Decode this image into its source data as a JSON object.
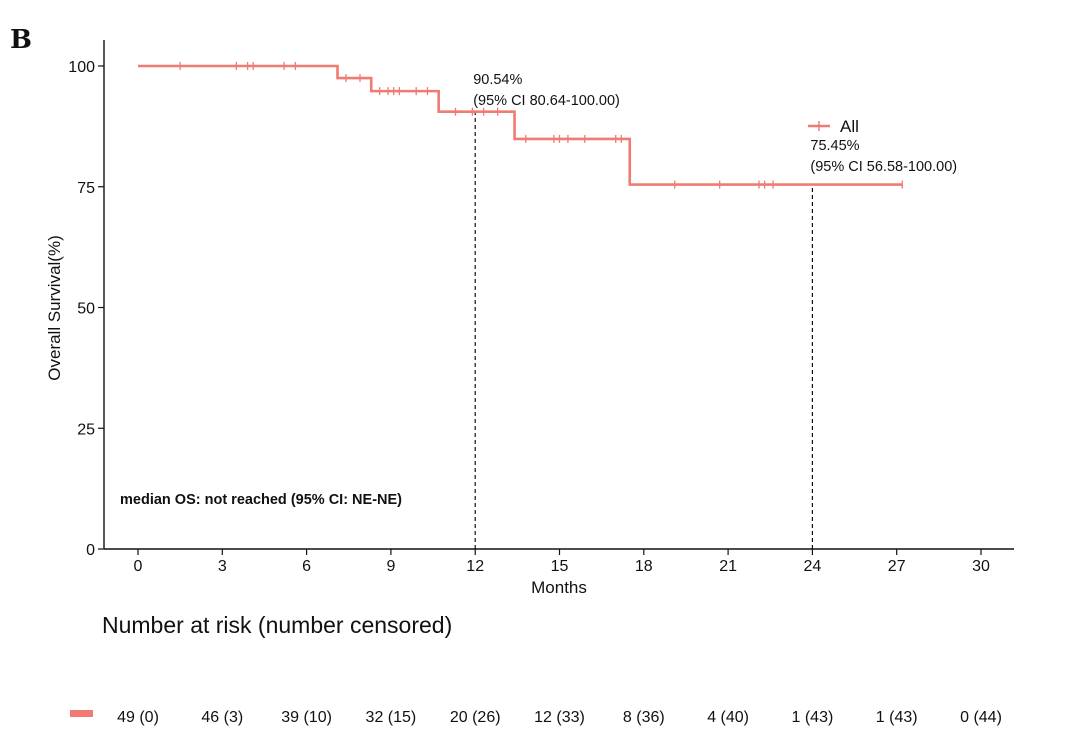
{
  "panel_letter": "B",
  "chart_data": {
    "type": "line",
    "subtype": "kaplan-meier",
    "title": "",
    "xlabel": "Months",
    "ylabel": "Overall Survival(%)",
    "xlim": [
      0,
      30
    ],
    "ylim": [
      0,
      100
    ],
    "xticks": [
      0,
      3,
      6,
      9,
      12,
      15,
      18,
      21,
      24,
      27,
      30
    ],
    "yticks": [
      0,
      25,
      50,
      75,
      100
    ],
    "grid": false,
    "legend": {
      "position": "top-right",
      "entries": [
        "All"
      ]
    },
    "colors": {
      "curve": "#F07B72"
    },
    "series": [
      {
        "name": "All",
        "steps": [
          {
            "x": 0,
            "y": 100
          },
          {
            "x": 7.1,
            "y": 97.5
          },
          {
            "x": 8.3,
            "y": 94.8
          },
          {
            "x": 10.7,
            "y": 90.54
          },
          {
            "x": 13.4,
            "y": 84.9
          },
          {
            "x": 17.5,
            "y": 75.45
          }
        ],
        "end_x": 27.2,
        "censored": [
          1.5,
          3.5,
          3.9,
          4.1,
          5.2,
          5.6,
          7.4,
          7.9,
          8.6,
          8.9,
          9.1,
          9.3,
          9.9,
          10.3,
          11.3,
          11.9,
          12.3,
          12.8,
          13.8,
          14.8,
          15.0,
          15.3,
          15.9,
          17.0,
          17.2,
          19.1,
          20.7,
          22.1,
          22.3,
          22.6,
          27.2
        ]
      }
    ],
    "reference_lines": [
      {
        "x": 12,
        "y": 90.54,
        "label_value": "90.54%",
        "label_ci": "(95% CI 80.64-100.00)"
      },
      {
        "x": 24,
        "y": 75.45,
        "label_value": "75.45%",
        "label_ci": "(95% CI 56.58-100.00)"
      }
    ],
    "median_text": "median OS: not reached (95% CI: NE-NE)"
  },
  "risk_table": {
    "title": "Number at risk (number censored)",
    "color": "#F07B72",
    "values": [
      "49 (0)",
      "46 (3)",
      "39 (10)",
      "32 (15)",
      "20 (26)",
      "12 (33)",
      "8 (36)",
      "4 (40)",
      "1 (43)",
      "1 (43)",
      "0 (44)"
    ]
  }
}
